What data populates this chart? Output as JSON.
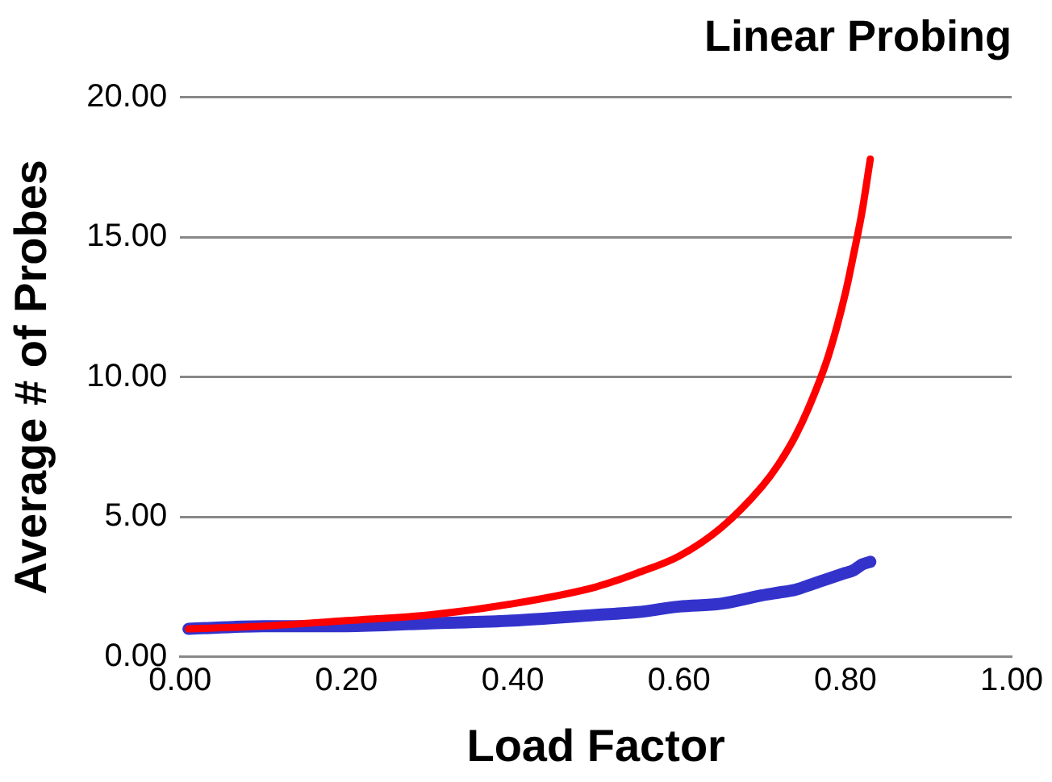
{
  "chart_data": {
    "type": "line",
    "title": "Linear Probing",
    "xlabel": "Load Factor",
    "ylabel": "Average # of Probes",
    "x": [
      0.01,
      0.1,
      0.2,
      0.3,
      0.4,
      0.5,
      0.55,
      0.6,
      0.65,
      0.7,
      0.72,
      0.74,
      0.76,
      0.78,
      0.8,
      0.81,
      0.82,
      0.83
    ],
    "series": [
      {
        "color": "#ff0000",
        "values": [
          1.0,
          1.1,
          1.3,
          1.5,
          1.9,
          2.5,
          3.0,
          3.6,
          4.6,
          6.1,
          6.9,
          7.9,
          9.2,
          10.8,
          13.0,
          14.4,
          15.9,
          17.8
        ]
      },
      {
        "color": "#3333cc",
        "values": [
          1.0,
          1.1,
          1.1,
          1.2,
          1.3,
          1.5,
          1.6,
          1.8,
          1.9,
          2.2,
          2.3,
          2.4,
          2.6,
          2.8,
          3.0,
          3.1,
          3.3,
          3.4
        ]
      }
    ],
    "xlim": [
      0,
      1
    ],
    "xticks": [
      {
        "value": 0,
        "label": "0.00"
      },
      {
        "value": 0.2,
        "label": "0.20"
      },
      {
        "value": 0.4,
        "label": "0.40"
      },
      {
        "value": 0.6,
        "label": "0.60"
      },
      {
        "value": 0.8,
        "label": "0.80"
      },
      {
        "value": 1,
        "label": "1.00"
      }
    ],
    "ylim": [
      0,
      20
    ],
    "yticks": [
      {
        "value": 0,
        "label": "0.00"
      },
      {
        "value": 5,
        "label": "5.00"
      },
      {
        "value": 10,
        "label": "10.00"
      },
      {
        "value": 15,
        "label": "15.00"
      },
      {
        "value": 20,
        "label": "20.00"
      }
    ],
    "grid": "y",
    "legend": false,
    "marker": "none",
    "line_style": "solid"
  }
}
